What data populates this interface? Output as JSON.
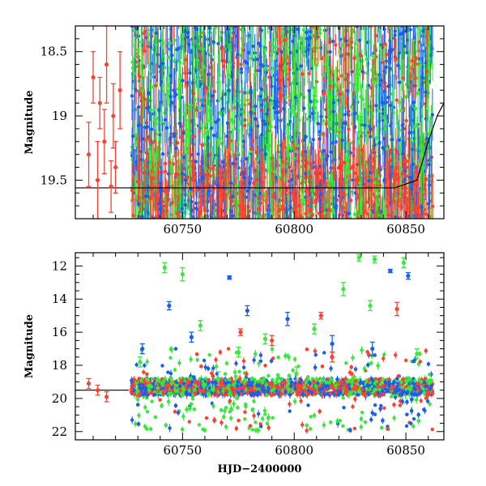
{
  "chart_data": [
    {
      "id": "top",
      "type": "scatter",
      "xlabel": "",
      "ylabel": "Magnitude",
      "xlim": [
        60702,
        60867
      ],
      "ylim": [
        19.8,
        18.3
      ],
      "y_inverted": true,
      "xticks": [
        60750,
        60800,
        60850
      ],
      "xtick_labels": [
        "60750",
        "60800",
        "60850"
      ],
      "yticks": [
        18.5,
        19,
        19.5
      ],
      "ytick_labels": [
        "18.5",
        "19",
        "19.5"
      ],
      "grid": false,
      "legend": "none",
      "model_curve": {
        "color": "#000000",
        "x": [
          60702,
          60720,
          60730,
          60760,
          60790,
          60820,
          60845,
          60855,
          60860,
          60864,
          60867
        ],
        "y": [
          19.56,
          19.56,
          19.56,
          19.56,
          19.56,
          19.56,
          19.56,
          19.5,
          19.2,
          19.0,
          18.9
        ]
      },
      "series": [
        {
          "color": "#ff4030",
          "x": [
            60708,
            60710,
            60712,
            60713,
            60715,
            60716,
            60718,
            60719,
            60720,
            60722
          ],
          "y": [
            19.3,
            18.7,
            19.5,
            18.9,
            19.2,
            18.6,
            19.55,
            19.0,
            19.4,
            18.8
          ],
          "err": [
            0.25,
            0.2,
            0.3,
            0.2,
            0.25,
            0.3,
            0.2,
            0.25,
            0.2,
            0.3
          ]
        }
      ]
    },
    {
      "id": "bottom",
      "type": "scatter",
      "xlabel": "HJD−2400000",
      "ylabel": "Magnitude",
      "xlim": [
        60702,
        60867
      ],
      "ylim": [
        22.5,
        11.2
      ],
      "y_inverted": true,
      "xticks": [
        60750,
        60800,
        60850
      ],
      "xtick_labels": [
        "60750",
        "60800",
        "60850"
      ],
      "yticks": [
        12,
        14,
        16,
        18,
        20,
        22
      ],
      "ytick_labels": [
        "12",
        "14",
        "16",
        "18",
        "20",
        "22"
      ],
      "grid": false,
      "legend": "none",
      "model_curve": {
        "color": "#000000",
        "x": [
          60702,
          60726
        ],
        "y": [
          19.5,
          19.5
        ]
      },
      "series": [
        {
          "color": "#1a5ef0",
          "x": [
            60732,
            60744,
            60754,
            60771,
            60779,
            60797,
            60817,
            60835,
            60843,
            60851
          ],
          "y": [
            17.0,
            14.4,
            16.3,
            12.7,
            14.7,
            15.2,
            16.7,
            17.0,
            12.3,
            12.6
          ],
          "err": [
            0.3,
            0.25,
            0.3,
            0.1,
            0.3,
            0.4,
            0.5,
            0.4,
            0.1,
            0.2
          ]
        },
        {
          "color": "#38e83a",
          "x": [
            60731,
            60742,
            60750,
            60758,
            60766,
            60775,
            60787,
            60801,
            60809,
            60822,
            60829,
            60834,
            60836,
            60849,
            60855
          ],
          "y": [
            17.8,
            12.1,
            12.5,
            15.6,
            18.8,
            17.2,
            16.4,
            18.5,
            15.8,
            13.4,
            11.5,
            14.4,
            11.6,
            11.8,
            17.3
          ],
          "err": [
            0.3,
            0.3,
            0.4,
            0.3,
            0.4,
            0.3,
            0.3,
            0.4,
            0.3,
            0.4,
            0.2,
            0.3,
            0.2,
            0.3,
            0.3
          ]
        },
        {
          "color": "#ff4030",
          "x": [
            60708,
            60712,
            60716,
            60776,
            60790,
            60812,
            60817,
            60846
          ],
          "y": [
            19.1,
            19.5,
            19.9,
            16.0,
            16.5,
            15.0,
            17.5,
            14.6
          ],
          "err": [
            0.3,
            0.3,
            0.3,
            0.2,
            0.3,
            0.2,
            0.3,
            0.4
          ]
        }
      ]
    }
  ]
}
